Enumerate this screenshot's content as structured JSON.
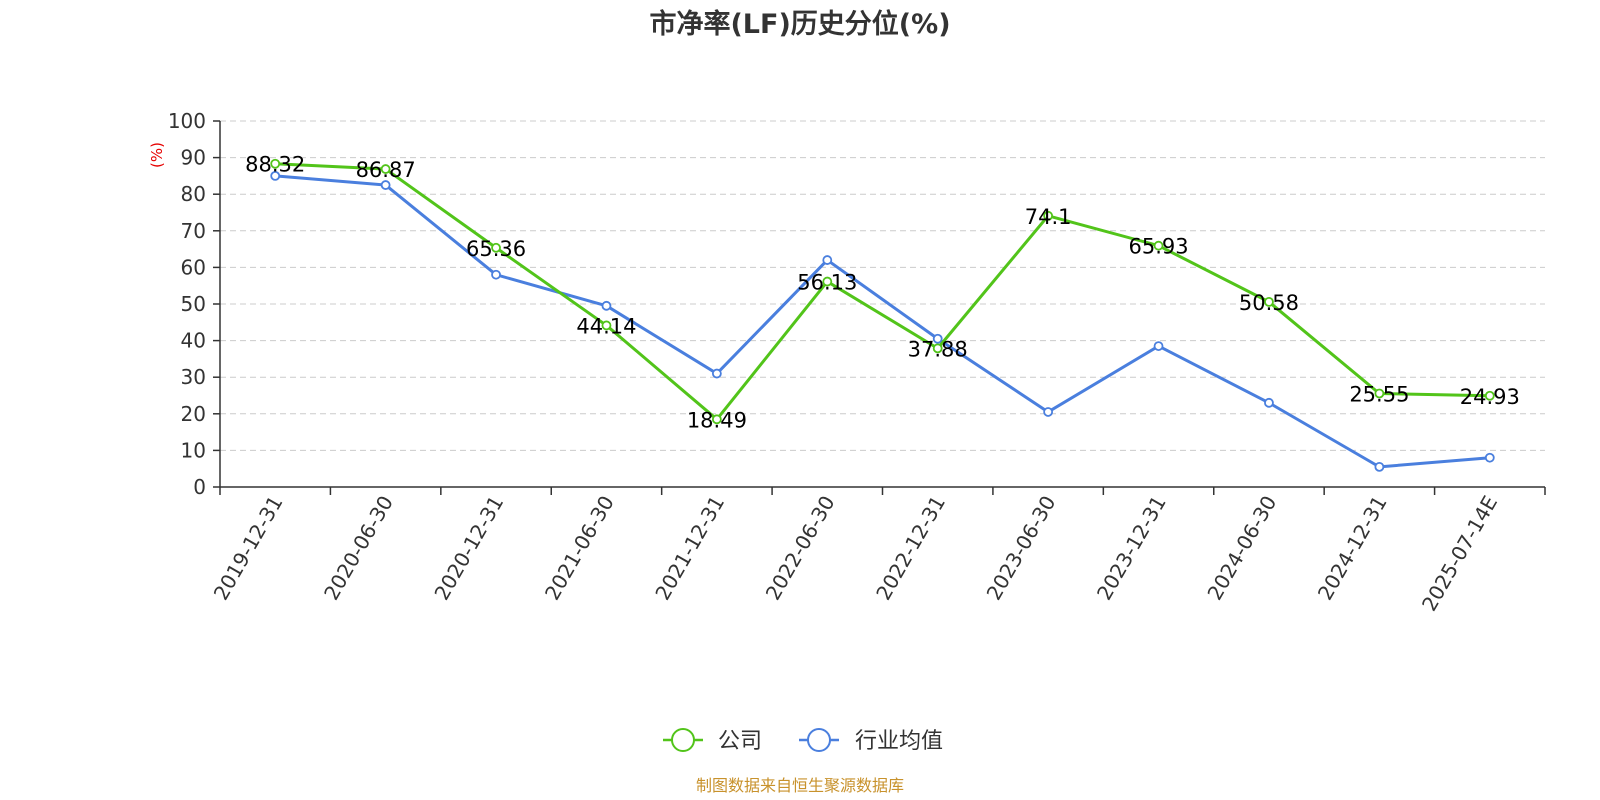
{
  "title": "市净率(LF)历史分位(%)",
  "unit_label": "(%)",
  "source": "制图数据来自恒生聚源数据库",
  "colors": {
    "company": "#52c41a",
    "industry": "#4a7fde",
    "source": "#c8922c",
    "axis": "#333333",
    "grid": "#cccccc",
    "unit": "#e60000"
  },
  "chart_data": {
    "type": "line",
    "title": "市净率(LF)历史分位(%)",
    "xlabel": "",
    "ylabel": "(%)",
    "ylim": [
      0,
      100
    ],
    "yticks": [
      0,
      10,
      20,
      30,
      40,
      50,
      60,
      70,
      80,
      90,
      100
    ],
    "grid": true,
    "legend_position": "bottom",
    "categories": [
      "2019-12-31",
      "2020-06-30",
      "2020-12-31",
      "2021-06-30",
      "2021-12-31",
      "2022-06-30",
      "2022-12-31",
      "2023-06-30",
      "2023-12-31",
      "2024-06-30",
      "2024-12-31",
      "2025-07-14E"
    ],
    "series": [
      {
        "name": "公司",
        "color": "#52c41a",
        "values": [
          88.32,
          86.87,
          65.36,
          44.14,
          18.49,
          56.13,
          37.88,
          74.1,
          65.93,
          50.58,
          25.55,
          24.93
        ],
        "labels": [
          "88.32",
          "86.87",
          "65.36",
          "44.14",
          "18.49",
          "56.13",
          "37.88",
          "74.1",
          "65.93",
          "50.58",
          "25.55",
          "24.93"
        ]
      },
      {
        "name": "行业均值",
        "color": "#4a7fde",
        "values": [
          85,
          82.5,
          58,
          49.5,
          31,
          62,
          40.5,
          20.5,
          38.5,
          23,
          5.5,
          8
        ]
      }
    ]
  }
}
